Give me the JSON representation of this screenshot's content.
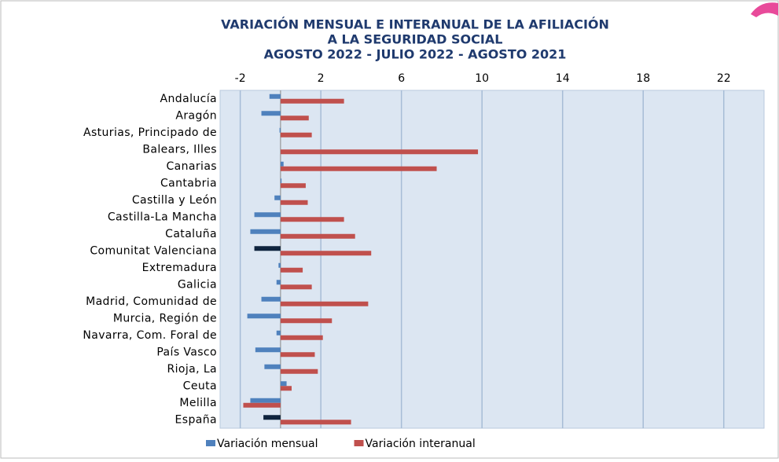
{
  "chart_data": {
    "type": "bar",
    "orientation": "horizontal",
    "title": [
      "VARIACIÓN MENSUAL E INTERANUAL DE LA AFILIACIÓN",
      "A  LA SEGURIDAD SOCIAL",
      "AGOSTO 2022 - JULIO 2022 - AGOSTO 2021"
    ],
    "categories": [
      "Andalucía",
      "Aragón",
      "Asturias, Principado de",
      "Balears, Illes",
      "Canarias",
      "Cantabria",
      "Castilla y León",
      "Castilla-La Mancha",
      "Cataluña",
      "Comunitat Valenciana",
      "Extremadura",
      "Galicia",
      "Madrid, Comunidad de",
      "Murcia, Región de",
      "Navarra, Com. Foral de",
      "País Vasco",
      "Rioja, La",
      "Ceuta",
      "Melilla",
      "España"
    ],
    "series": [
      {
        "name": "Variación mensual",
        "color": "#4f81bd",
        "point_colors": [
          null,
          null,
          null,
          null,
          null,
          null,
          null,
          null,
          null,
          "#0f243e",
          null,
          null,
          null,
          null,
          null,
          null,
          null,
          null,
          null,
          "#0f243e"
        ],
        "values": [
          -0.55,
          -0.95,
          -0.05,
          0.0,
          0.15,
          0.05,
          -0.3,
          -1.3,
          -1.5,
          -1.3,
          -0.1,
          -0.2,
          -0.95,
          -1.65,
          -0.2,
          -1.25,
          -0.8,
          0.3,
          -1.5,
          -0.85
        ]
      },
      {
        "name": "Variación interanual",
        "color": "#c0504d",
        "values": [
          3.15,
          1.4,
          1.55,
          9.8,
          7.75,
          1.25,
          1.35,
          3.15,
          3.7,
          4.5,
          1.1,
          1.55,
          4.35,
          2.55,
          2.1,
          1.7,
          1.85,
          0.55,
          -1.85,
          3.5
        ]
      }
    ],
    "xlim": [
      -3,
      24
    ],
    "xticks": [
      -2,
      2,
      6,
      10,
      14,
      18,
      22
    ],
    "grid": true,
    "legend": "bottom"
  }
}
